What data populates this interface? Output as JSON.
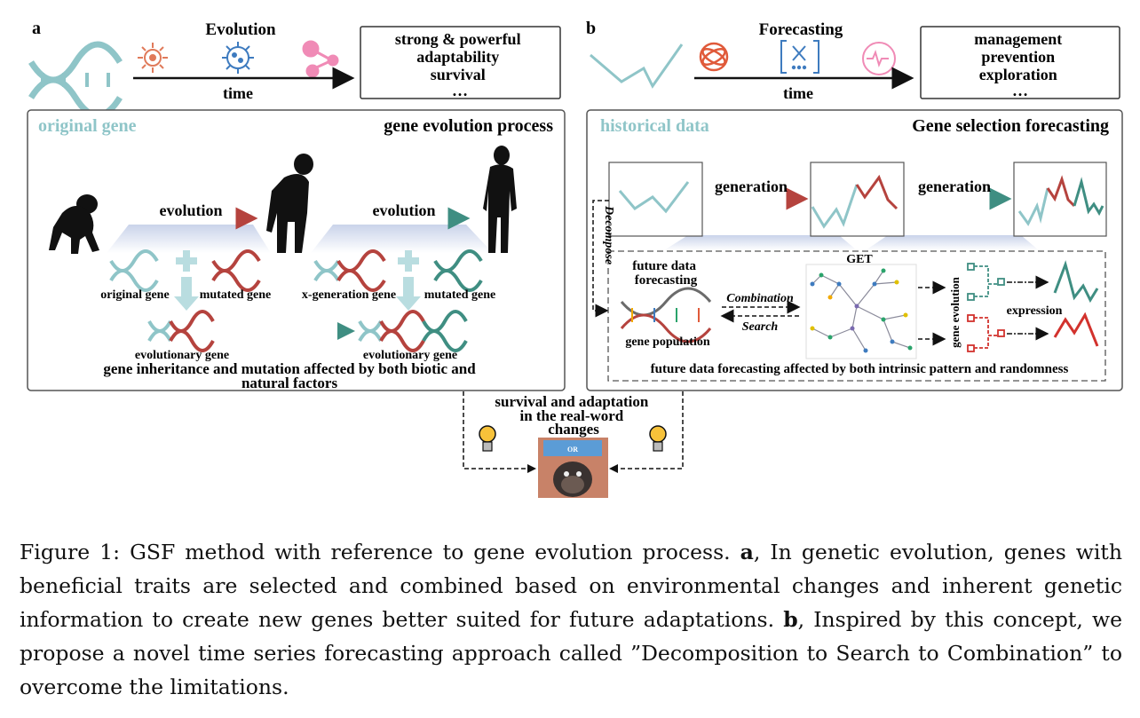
{
  "panel_a": {
    "letter": "a",
    "header_label": "Evolution",
    "axis_label": "time",
    "outcomes": [
      "strong & powerful",
      "adaptability",
      "survival",
      "…"
    ],
    "box_left_title": "original gene",
    "box_right_title": "gene evolution process",
    "evolution_label_1": "evolution",
    "evolution_label_2": "evolution",
    "gene_original": "original gene",
    "gene_mutated_1": "mutated gene",
    "gene_xgen": "x-generation gene",
    "gene_mutated_2": "mutated gene",
    "gene_evo_1": "evolutionary gene",
    "gene_evo_2": "evolutionary gene",
    "footer_line1": "gene inheritance and mutation affected by both  biotic and",
    "footer_line2": "natural factors"
  },
  "panel_b": {
    "letter": "b",
    "header_label": "Forecasting",
    "axis_label": "time",
    "outcomes": [
      "management",
      "prevention",
      "exploration",
      "…"
    ],
    "box_left_title": "historical data",
    "box_right_title": "Gene selection forecasting",
    "generation_1": "generation",
    "generation_2": "generation",
    "decompose": "Decompose",
    "future_line1": "future data",
    "future_line2": "forecasting",
    "gene_population": "gene population",
    "combination": "Combination",
    "search": "Search",
    "get": "GET",
    "gene_evolution": "gene evolution",
    "expression": "expression",
    "footer": "future data forecasting affected by both intrinsic pattern and randomness"
  },
  "center": {
    "line1": "survival and adaptation",
    "line2": "in the real-word",
    "line3": "changes",
    "screen_or": "OR"
  },
  "caption": {
    "p1": "Figure 1: GSF method with reference to gene evolution process. ",
    "a": "a",
    "p2": ", In genetic evolution, genes with beneficial traits are selected and combined based on environmental changes and inherent genetic information to create new genes better suited for future adaptations. ",
    "b": "b",
    "p3": ", Inspired by this concept, we propose a novel time series forecasting approach called ”Decomposition to Search to Combination” to overcome the limitations."
  },
  "colors": {
    "teal_light": "#8fc5c8",
    "teal_dark": "#3f8e82",
    "red": "#b5433e",
    "grey_box": "#555555"
  }
}
